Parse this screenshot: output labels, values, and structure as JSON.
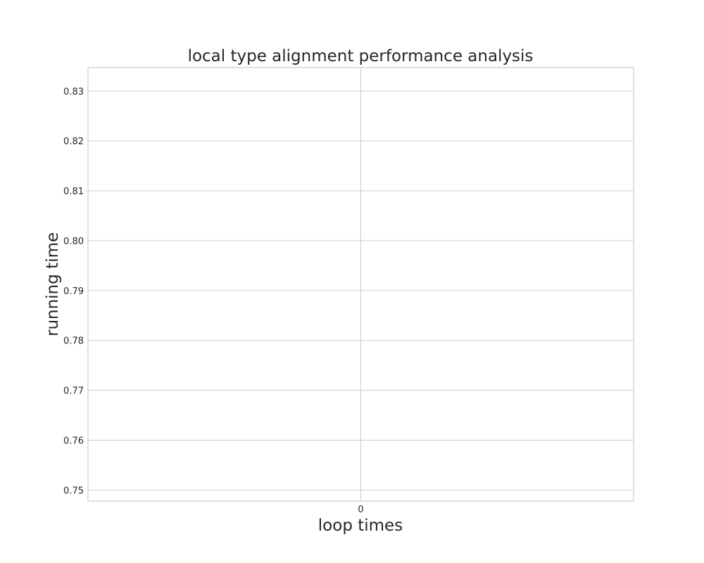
{
  "chart_data": {
    "type": "line",
    "title": "local type alignment performance analysis",
    "xlabel": "loop times",
    "ylabel": "running time",
    "x_ticks": [
      "0"
    ],
    "y_ticks": [
      "0.75",
      "0.76",
      "0.77",
      "0.78",
      "0.79",
      "0.80",
      "0.81",
      "0.82",
      "0.83"
    ],
    "ylim": [
      0.7478,
      0.8347
    ],
    "xlim": [
      -0.055,
      0.055
    ],
    "grid": true,
    "series": []
  }
}
